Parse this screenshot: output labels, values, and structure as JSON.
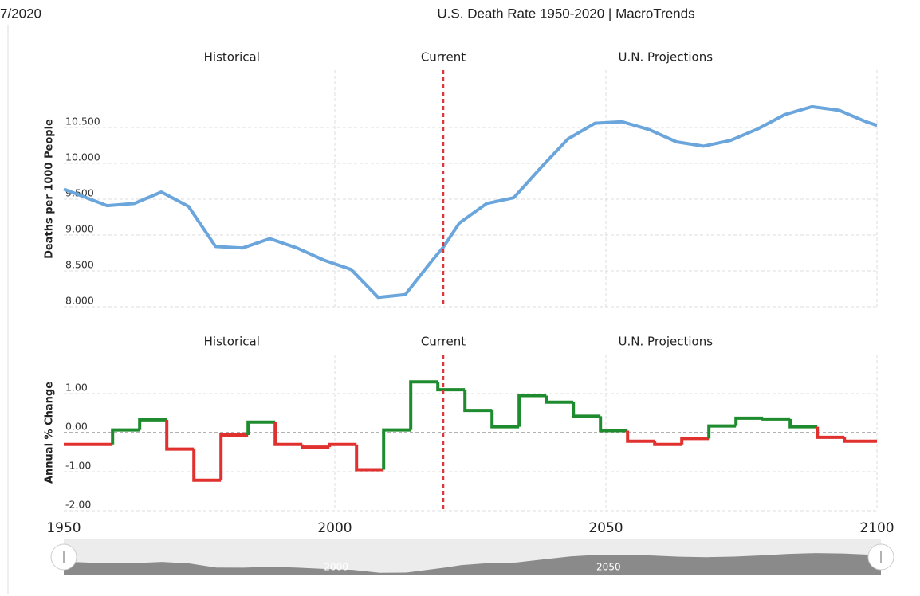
{
  "date": "7/2020",
  "title": "U.S. Death Rate 1950-2020 | MacroTrends",
  "chart_data": [
    {
      "type": "line",
      "panel_labels": [
        "Historical",
        "Current",
        "U.N. Projections"
      ],
      "ylabel": "Deaths per 1000 People",
      "current_year": 2020,
      "color": "#6aa5dc",
      "x": [
        1950,
        1958,
        1963,
        1968,
        1973,
        1978,
        1983,
        1988,
        1993,
        1998,
        2003,
        2008,
        2013,
        2018,
        2020,
        2023,
        2028,
        2033,
        2038,
        2043,
        2048,
        2053,
        2058,
        2063,
        2068,
        2073,
        2078,
        2083,
        2088,
        2093,
        2098,
        2100
      ],
      "values": [
        9.64,
        9.41,
        9.44,
        9.6,
        9.4,
        8.84,
        8.82,
        8.95,
        8.82,
        8.65,
        8.52,
        8.13,
        8.17,
        8.65,
        8.83,
        9.17,
        9.44,
        9.52,
        9.94,
        10.34,
        10.56,
        10.58,
        10.47,
        10.3,
        10.24,
        10.32,
        10.48,
        10.68,
        10.79,
        10.74,
        10.58,
        10.53
      ],
      "xlim": [
        1950,
        2100
      ],
      "ylim": [
        8,
        11.3
      ],
      "yticks": [
        {
          "value": 8,
          "label": "8.000"
        },
        {
          "value": 8.5,
          "label": "8.500"
        },
        {
          "value": 9,
          "label": "9.000"
        },
        {
          "value": 9.5,
          "label": "9.500"
        },
        {
          "value": 10,
          "label": "10.000"
        },
        {
          "value": 10.5,
          "label": "10.500"
        }
      ],
      "grid": true
    },
    {
      "type": "step",
      "panel_labels": [
        "Historical",
        "Current",
        "U.N. Projections"
      ],
      "ylabel": "Annual % Change",
      "current_year": 2020,
      "positive_color": "#1e8b2e",
      "negative_color": "#e0312f",
      "x": [
        1950,
        1959,
        1964,
        1969,
        1974,
        1979,
        1984,
        1989,
        1994,
        1999,
        2004,
        2009,
        2014,
        2019,
        2024,
        2029,
        2034,
        2039,
        2044,
        2049,
        2054,
        2059,
        2064,
        2069,
        2074,
        2079,
        2084,
        2089,
        2094
      ],
      "values": [
        -0.3,
        0.07,
        0.33,
        -0.42,
        -1.22,
        -0.06,
        0.27,
        -0.3,
        -0.37,
        -0.3,
        -0.95,
        0.07,
        1.3,
        1.1,
        0.57,
        0.15,
        0.95,
        0.78,
        0.42,
        0.05,
        -0.22,
        -0.3,
        -0.15,
        0.17,
        0.37,
        0.35,
        0.15,
        -0.12,
        -0.22
      ],
      "xlim": [
        1950,
        2100
      ],
      "ylim": [
        -2,
        2
      ],
      "yticks": [
        {
          "value": -2,
          "label": "-2.00"
        },
        {
          "value": -1,
          "label": "-1.00"
        },
        {
          "value": 0,
          "label": "0.00"
        },
        {
          "value": 1,
          "label": "1.00"
        }
      ],
      "xticks": [
        1950,
        2000,
        2050,
        2100
      ],
      "grid": true
    }
  ],
  "navigator": {
    "xticks": [
      2000,
      2050
    ]
  }
}
